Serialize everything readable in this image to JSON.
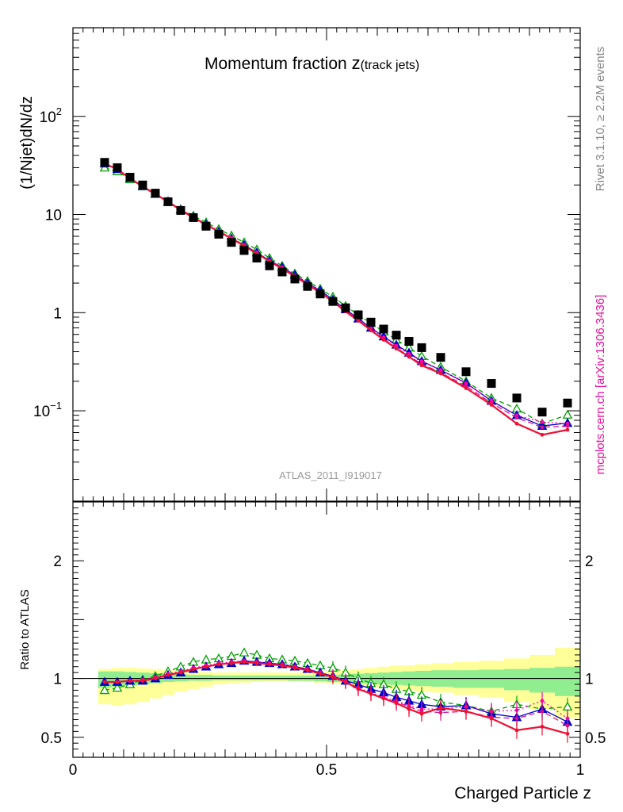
{
  "chart_data": [
    {
      "type": "scatter",
      "title": "Momentum fraction",
      "title_symbol": "z",
      "title_sub": "(track jets)",
      "ylabel": "(1/Njet)dN/dz",
      "yscale": "log",
      "ylim": [
        0.012,
        800
      ],
      "xlim": [
        0,
        1.0
      ],
      "y_ticks": [
        {
          "value": 0.1,
          "label": "10",
          "sup": "−1"
        },
        {
          "value": 1,
          "label": "1",
          "sup": ""
        },
        {
          "value": 10,
          "label": "10",
          "sup": ""
        },
        {
          "value": 100,
          "label": "10",
          "sup": "2"
        }
      ],
      "annotation_center": "ATLAS_2011_I919017",
      "side_label_grey": "Rivet 3.1.10, ≥ 2.2M events",
      "side_label_pink": "mcplots.cern.ch [arXiv:1306.3436]",
      "x": [
        0.0625,
        0.0875,
        0.1125,
        0.1375,
        0.1625,
        0.1875,
        0.2125,
        0.2375,
        0.2625,
        0.2875,
        0.3125,
        0.3375,
        0.3625,
        0.3875,
        0.4125,
        0.4375,
        0.4625,
        0.4875,
        0.5125,
        0.5375,
        0.5625,
        0.5875,
        0.6125,
        0.6375,
        0.6625,
        0.6875,
        0.725,
        0.775,
        0.825,
        0.875,
        0.925,
        0.975
      ],
      "series": [
        {
          "name": "",
          "role": "data",
          "color": "#000000",
          "marker": "square",
          "values": [
            34,
            30,
            24,
            20,
            16.5,
            13.5,
            11,
            9.3,
            7.6,
            6.3,
            5.2,
            4.3,
            3.6,
            3.0,
            2.6,
            2.2,
            1.85,
            1.55,
            1.3,
            1.12,
            0.95,
            0.8,
            0.68,
            0.59,
            0.51,
            0.44,
            0.35,
            0.25,
            0.19,
            0.135,
            0.097,
            0.12
          ]
        },
        {
          "name": "",
          "role": "mc",
          "color": "#00a000",
          "marker": "open-triangle",
          "dash": "6,4",
          "values": [
            30,
            27.5,
            22.8,
            19.3,
            16.2,
            13.5,
            11.3,
            9.7,
            8.3,
            7.1,
            6.1,
            5.2,
            4.4,
            3.6,
            3.0,
            2.5,
            2.1,
            1.75,
            1.45,
            1.17,
            0.95,
            0.78,
            0.64,
            0.53,
            0.44,
            0.36,
            0.28,
            0.2,
            0.135,
            0.105,
            0.074,
            0.091
          ]
        },
        {
          "name": "",
          "role": "mc",
          "color": "#0000cc",
          "marker": "filled-triangle",
          "dash": "",
          "values": [
            33,
            29,
            23.5,
            19.5,
            16.2,
            13.6,
            11.2,
            9.4,
            7.9,
            6.7,
            5.7,
            4.9,
            4.1,
            3.4,
            2.9,
            2.42,
            2.0,
            1.68,
            1.36,
            1.08,
            0.87,
            0.7,
            0.57,
            0.47,
            0.39,
            0.32,
            0.26,
            0.192,
            0.126,
            0.09,
            0.07,
            0.075
          ]
        },
        {
          "name": "",
          "role": "mc",
          "color": "#ff00aa",
          "marker": "dot",
          "dash": "2,3",
          "values": [
            33,
            29,
            23.5,
            19.5,
            16.3,
            13.7,
            11.3,
            9.5,
            8.0,
            6.8,
            5.8,
            4.9,
            4.1,
            3.4,
            2.9,
            2.4,
            2.0,
            1.65,
            1.34,
            1.06,
            0.86,
            0.69,
            0.56,
            0.46,
            0.38,
            0.32,
            0.26,
            0.19,
            0.128,
            0.09,
            0.077,
            0.074
          ]
        },
        {
          "name": "",
          "role": "mc",
          "color": "#d4148c",
          "marker": "dot",
          "dash": "7,4",
          "values": [
            33,
            29,
            23.4,
            19.4,
            16.2,
            13.6,
            11.2,
            9.4,
            7.9,
            6.7,
            5.7,
            4.8,
            4.0,
            3.35,
            2.85,
            2.38,
            1.96,
            1.63,
            1.31,
            1.04,
            0.84,
            0.67,
            0.54,
            0.44,
            0.36,
            0.3,
            0.245,
            0.178,
            0.12,
            0.085,
            0.068,
            0.07
          ]
        },
        {
          "name": "",
          "role": "mc",
          "color": "#ee1133",
          "marker": "dot",
          "dash": "",
          "values": [
            33,
            29,
            23.3,
            19.3,
            16.1,
            13.5,
            11.1,
            9.3,
            7.9,
            6.7,
            5.7,
            4.8,
            4.0,
            3.35,
            2.8,
            2.35,
            1.93,
            1.6,
            1.3,
            1.03,
            0.83,
            0.66,
            0.53,
            0.43,
            0.355,
            0.29,
            0.24,
            0.17,
            0.115,
            0.074,
            0.057,
            0.064
          ]
        }
      ]
    },
    {
      "type": "line",
      "ylabel": "Ratio to ATLAS",
      "xlabel": "Charged Particle z",
      "ylim": [
        0.33,
        2.5
      ],
      "xlim": [
        0,
        1.0
      ],
      "x_ticks": [
        {
          "value": 0,
          "label": "0"
        },
        {
          "value": 0.5,
          "label": "0.5"
        },
        {
          "value": 1,
          "label": "1"
        }
      ],
      "y_ticks": [
        {
          "value": 0.5,
          "label": "0.5"
        },
        {
          "value": 1,
          "label": "1"
        },
        {
          "value": 2,
          "label": "2"
        }
      ],
      "reference_line": 1,
      "band_inner": {
        "color": "#90ee90",
        "low": [
          0.92,
          0.93,
          0.94,
          0.95,
          0.96,
          0.97,
          0.975,
          0.98,
          0.98,
          0.985,
          0.985,
          0.985,
          0.985,
          0.985,
          0.985,
          0.98,
          0.98,
          0.975,
          0.97,
          0.97,
          0.96,
          0.955,
          0.95,
          0.945,
          0.94,
          0.935,
          0.93,
          0.92,
          0.92,
          0.9,
          0.88,
          0.85
        ],
        "high": [
          1.06,
          1.06,
          1.055,
          1.05,
          1.045,
          1.04,
          1.035,
          1.03,
          1.03,
          1.025,
          1.025,
          1.025,
          1.025,
          1.025,
          1.025,
          1.025,
          1.025,
          1.025,
          1.03,
          1.035,
          1.04,
          1.045,
          1.05,
          1.055,
          1.06,
          1.065,
          1.07,
          1.07,
          1.075,
          1.08,
          1.09,
          1.1
        ]
      },
      "band_outer": {
        "color": "#ffff99",
        "low": [
          0.78,
          0.77,
          0.78,
          0.8,
          0.83,
          0.86,
          0.89,
          0.91,
          0.93,
          0.95,
          0.96,
          0.965,
          0.97,
          0.975,
          0.975,
          0.975,
          0.97,
          0.965,
          0.96,
          0.95,
          0.94,
          0.93,
          0.92,
          0.91,
          0.9,
          0.89,
          0.88,
          0.86,
          0.84,
          0.8,
          0.74,
          0.66
        ],
        "high": [
          1.08,
          1.09,
          1.09,
          1.085,
          1.08,
          1.07,
          1.065,
          1.06,
          1.055,
          1.05,
          1.05,
          1.05,
          1.05,
          1.05,
          1.05,
          1.05,
          1.055,
          1.06,
          1.065,
          1.07,
          1.08,
          1.09,
          1.1,
          1.11,
          1.11,
          1.12,
          1.13,
          1.14,
          1.15,
          1.17,
          1.2,
          1.26
        ]
      },
      "series": [
        {
          "name": "",
          "color": "#00a000",
          "marker": "open-triangle",
          "dash": "6,4",
          "values": [
            0.9,
            0.92,
            0.95,
            0.99,
            1.02,
            1.06,
            1.1,
            1.14,
            1.16,
            1.17,
            1.19,
            1.22,
            1.2,
            1.17,
            1.16,
            1.15,
            1.13,
            1.11,
            1.09,
            1.05,
            1.0,
            0.96,
            0.95,
            0.91,
            0.89,
            0.86,
            0.8,
            0.77,
            0.72,
            0.78,
            0.74,
            0.76
          ]
        },
        {
          "name": "",
          "color": "#0000cc",
          "marker": "filled-triangle",
          "dash": "",
          "values": [
            0.97,
            0.97,
            0.98,
            0.98,
            1.0,
            1.03,
            1.05,
            1.08,
            1.1,
            1.12,
            1.13,
            1.15,
            1.14,
            1.13,
            1.12,
            1.1,
            1.08,
            1.05,
            1.02,
            0.98,
            0.95,
            0.91,
            0.88,
            0.84,
            0.81,
            0.78,
            0.76,
            0.77,
            0.7,
            0.67,
            0.74,
            0.63
          ]
        },
        {
          "name": "",
          "color": "#ff00aa",
          "marker": "dot",
          "dash": "2,3",
          "values": [
            0.97,
            0.97,
            0.98,
            0.99,
            1.01,
            1.04,
            1.06,
            1.09,
            1.11,
            1.13,
            1.14,
            1.15,
            1.14,
            1.13,
            1.12,
            1.1,
            1.08,
            1.05,
            1.02,
            0.98,
            0.92,
            0.88,
            0.84,
            0.81,
            0.77,
            0.74,
            0.74,
            0.76,
            0.72,
            0.73,
            0.81,
            0.66
          ]
        },
        {
          "name": "",
          "color": "#d4148c",
          "marker": "dot",
          "dash": "7,4",
          "values": [
            0.97,
            0.97,
            0.98,
            0.98,
            1.0,
            1.03,
            1.05,
            1.08,
            1.1,
            1.12,
            1.13,
            1.14,
            1.13,
            1.12,
            1.11,
            1.09,
            1.07,
            1.04,
            1.01,
            0.97,
            0.91,
            0.87,
            0.83,
            0.8,
            0.76,
            0.72,
            0.71,
            0.72,
            0.67,
            0.66,
            0.72,
            0.6
          ]
        },
        {
          "name": "",
          "color": "#ee1133",
          "marker": "dot",
          "dash": "",
          "values": [
            0.97,
            0.97,
            0.98,
            0.98,
            1.0,
            1.03,
            1.05,
            1.08,
            1.1,
            1.12,
            1.13,
            1.14,
            1.13,
            1.12,
            1.11,
            1.09,
            1.07,
            1.04,
            1.01,
            0.97,
            0.91,
            0.87,
            0.83,
            0.79,
            0.74,
            0.7,
            0.75,
            0.72,
            0.66,
            0.56,
            0.59,
            0.53
          ]
        }
      ]
    }
  ]
}
